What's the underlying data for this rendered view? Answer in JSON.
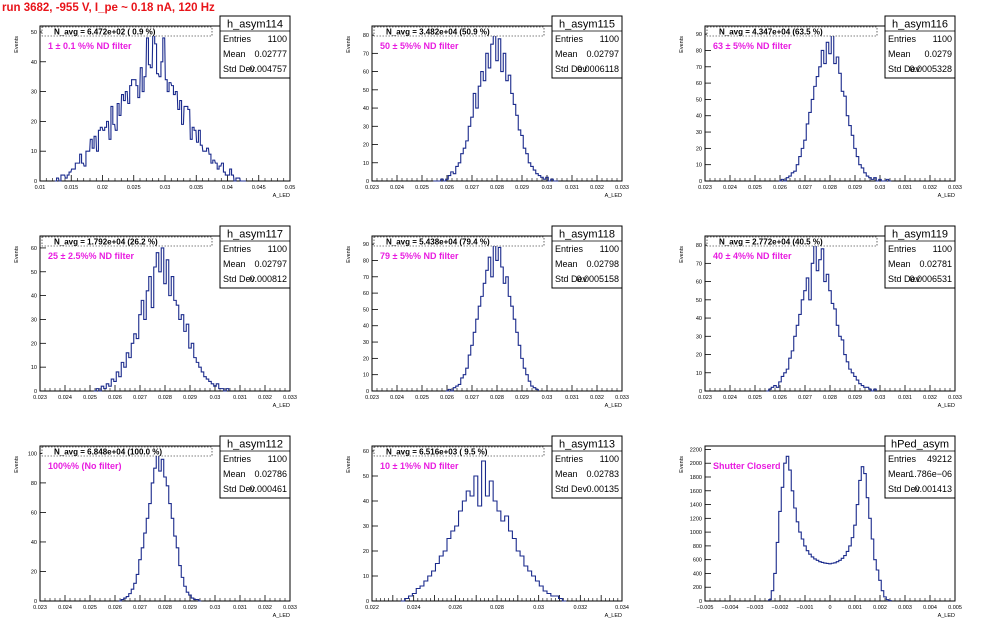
{
  "run_title": "run 3682,  -955 V, I_pe ~ 0.18 nA, 120 Hz",
  "axis_ylabel": "Events",
  "axis_xlabel": "A_LED",
  "stat_labels": {
    "entries": "Entries",
    "mean": "Mean",
    "stddev": "Std Dev"
  },
  "colors": {
    "histogram": "#1a2a8c",
    "annotation": "#e81ce0",
    "title": "#e8141a",
    "frame": "#000000"
  },
  "chart_data": [
    {
      "type": "histogram",
      "name": "h_asym114",
      "navg": "N_avg = 6.472e+02 ( 0.9 %)",
      "note": "1 ± 0.1 %% ND filter",
      "entries": "1100",
      "mean": "0.02777",
      "stddev": "0.004757",
      "xlim": [
        0.01,
        0.05
      ],
      "ylim": [
        0,
        52
      ],
      "xticks": [
        "0.01",
        "0.015",
        "0.02",
        "0.025",
        "0.03",
        "0.035",
        "0.04",
        "0.045",
        "0.05"
      ],
      "yticks": [
        0,
        10,
        20,
        30,
        40,
        50
      ],
      "bins": [
        0.0125,
        0.0128,
        0.0132,
        0.0135,
        0.0138,
        0.0142,
        0.0145,
        0.0148,
        0.0152,
        0.0155,
        0.0158,
        0.0162,
        0.0165,
        0.0168,
        0.0172,
        0.0175,
        0.0178,
        0.0182,
        0.0185,
        0.0188,
        0.0192,
        0.0195,
        0.0198,
        0.0202,
        0.0205,
        0.0208,
        0.0212,
        0.0215,
        0.0218,
        0.0222,
        0.0225,
        0.0228,
        0.0232,
        0.0235,
        0.0238,
        0.0242,
        0.0245,
        0.0248,
        0.0252,
        0.0255,
        0.0258,
        0.0262,
        0.0265,
        0.0268,
        0.0272,
        0.0275,
        0.0278,
        0.0282,
        0.0285,
        0.0288,
        0.0292,
        0.0295,
        0.0298,
        0.0302,
        0.0305,
        0.0308,
        0.0312,
        0.0315,
        0.0318,
        0.0322,
        0.0325,
        0.0328,
        0.0332,
        0.0335,
        0.0338,
        0.0342,
        0.0345,
        0.0348,
        0.0352,
        0.0355,
        0.0358,
        0.0362,
        0.0365,
        0.0368,
        0.0372,
        0.0375,
        0.0378,
        0.0382,
        0.0385,
        0.0388,
        0.0392,
        0.0395,
        0.0398,
        0.0402,
        0.0405,
        0.0408,
        0.0412,
        0.0415,
        0.0418,
        0.0422,
        0.0425,
        0.0428
      ],
      "values": [
        0,
        1,
        0,
        2,
        2,
        1,
        2,
        3,
        4,
        4,
        6,
        6,
        9,
        6,
        5,
        10,
        10,
        14,
        11,
        15,
        10,
        17,
        18,
        17,
        18,
        20,
        14,
        25,
        19,
        17,
        26,
        22,
        29,
        27,
        30,
        26,
        32,
        34,
        34,
        32,
        28,
        38,
        30,
        35,
        48,
        39,
        38,
        50,
        46,
        36,
        35,
        40,
        48,
        34,
        30,
        33,
        32,
        29,
        30,
        24,
        27,
        19,
        25,
        25,
        24,
        14,
        18,
        17,
        13,
        17,
        12,
        10,
        10,
        11,
        9,
        6,
        7,
        6,
        4,
        5,
        6,
        3,
        2,
        2,
        4,
        2,
        0,
        1,
        1,
        0,
        0,
        0
      ]
    },
    {
      "type": "histogram",
      "name": "h_asym115",
      "navg": "N_avg = 3.482e+04 (50.9 %)",
      "note": "50 ± 5%% ND filter",
      "entries": "1100",
      "mean": "0.02797",
      "stddev": "0.0006118",
      "xlim": [
        0.023,
        0.033
      ],
      "ylim": [
        0,
        85
      ],
      "xticks": [
        "0.023",
        "0.024",
        "0.025",
        "0.026",
        "0.027",
        "0.028",
        "0.029",
        "0.03",
        "0.031",
        "0.032",
        "0.033"
      ],
      "yticks": [
        0,
        10,
        20,
        30,
        40,
        50,
        60,
        70,
        80
      ],
      "bins": [
        0.0255,
        0.0256,
        0.0257,
        0.0258,
        0.0259,
        0.026,
        0.0261,
        0.0262,
        0.0263,
        0.0264,
        0.0265,
        0.0266,
        0.0267,
        0.0268,
        0.0269,
        0.027,
        0.0271,
        0.0272,
        0.0273,
        0.0274,
        0.0275,
        0.0276,
        0.0277,
        0.0278,
        0.0279,
        0.028,
        0.0281,
        0.0282,
        0.0283,
        0.0284,
        0.0285,
        0.0286,
        0.0287,
        0.0288,
        0.0289,
        0.029,
        0.0291,
        0.0292,
        0.0293,
        0.0294,
        0.0295,
        0.0296,
        0.0297,
        0.0298,
        0.0299,
        0.03,
        0.0301,
        0.0302,
        0.0303,
        0.0304
      ],
      "values": [
        0,
        0,
        0,
        1,
        0,
        1,
        3,
        5,
        4,
        8,
        10,
        15,
        18,
        22,
        30,
        35,
        48,
        40,
        52,
        60,
        55,
        70,
        62,
        75,
        82,
        66,
        78,
        60,
        70,
        55,
        58,
        48,
        42,
        36,
        28,
        25,
        18,
        15,
        10,
        8,
        6,
        4,
        3,
        2,
        1,
        2,
        0,
        1,
        0,
        0
      ]
    },
    {
      "type": "histogram",
      "name": "h_asym116",
      "navg": "N_avg = 4.347e+04 (63.5 %)",
      "note": "63 ± 5%% ND filter",
      "entries": "1100",
      "mean": "0.0279",
      "stddev": "0.0005328",
      "xlim": [
        0.023,
        0.033
      ],
      "ylim": [
        0,
        95
      ],
      "xticks": [
        "0.023",
        "0.024",
        "0.025",
        "0.026",
        "0.027",
        "0.028",
        "0.029",
        "0.03",
        "0.031",
        "0.032",
        "0.033"
      ],
      "yticks": [
        0,
        10,
        20,
        30,
        40,
        50,
        60,
        70,
        80,
        90
      ],
      "bins": [
        0.026,
        0.0261,
        0.0262,
        0.0263,
        0.0264,
        0.0265,
        0.0266,
        0.0267,
        0.0268,
        0.0269,
        0.027,
        0.0271,
        0.0272,
        0.0273,
        0.0274,
        0.0275,
        0.0276,
        0.0277,
        0.0278,
        0.0279,
        0.028,
        0.0281,
        0.0282,
        0.0283,
        0.0284,
        0.0285,
        0.0286,
        0.0287,
        0.0288,
        0.0289,
        0.029,
        0.0291,
        0.0292,
        0.0293,
        0.0294,
        0.0295,
        0.0296,
        0.0297,
        0.0298,
        0.0299,
        0.03,
        0.0301,
        0.0302,
        0.0303,
        0.0304
      ],
      "values": [
        0,
        1,
        0,
        2,
        3,
        5,
        6,
        10,
        15,
        20,
        25,
        35,
        42,
        50,
        58,
        64,
        70,
        80,
        72,
        85,
        78,
        90,
        72,
        76,
        66,
        55,
        52,
        40,
        34,
        28,
        20,
        15,
        10,
        8,
        5,
        3,
        2,
        1,
        2,
        0,
        1,
        0,
        0,
        1,
        0
      ]
    },
    {
      "type": "histogram",
      "name": "h_asym117",
      "navg": "N_avg = 1.792e+04 (26.2 %)",
      "note": "25 ± 2.5%% ND filter",
      "entries": "1100",
      "mean": "0.02797",
      "stddev": "0.000812",
      "xlim": [
        0.023,
        0.033
      ],
      "ylim": [
        0,
        65
      ],
      "xticks": [
        "0.023",
        "0.024",
        "0.025",
        "0.026",
        "0.027",
        "0.028",
        "0.029",
        "0.03",
        "0.031",
        "0.032",
        "0.033"
      ],
      "yticks": [
        0,
        10,
        20,
        30,
        40,
        50,
        60
      ],
      "bins": [
        0.0252,
        0.0253,
        0.0254,
        0.0255,
        0.0256,
        0.0257,
        0.0258,
        0.0259,
        0.026,
        0.0261,
        0.0262,
        0.0263,
        0.0264,
        0.0265,
        0.0266,
        0.0267,
        0.0268,
        0.0269,
        0.027,
        0.0271,
        0.0272,
        0.0273,
        0.0274,
        0.0275,
        0.0276,
        0.0277,
        0.0278,
        0.0279,
        0.028,
        0.0281,
        0.0282,
        0.0283,
        0.0284,
        0.0285,
        0.0286,
        0.0287,
        0.0288,
        0.0289,
        0.029,
        0.0291,
        0.0292,
        0.0293,
        0.0294,
        0.0295,
        0.0296,
        0.0297,
        0.0298,
        0.0299,
        0.03,
        0.0301,
        0.0302,
        0.0303,
        0.0304,
        0.0305
      ],
      "values": [
        0,
        1,
        0,
        2,
        1,
        3,
        2,
        5,
        4,
        8,
        6,
        12,
        10,
        16,
        14,
        20,
        24,
        22,
        32,
        38,
        30,
        42,
        48,
        35,
        52,
        58,
        50,
        60,
        45,
        55,
        40,
        48,
        38,
        36,
        30,
        32,
        25,
        28,
        18,
        20,
        14,
        12,
        10,
        8,
        6,
        5,
        4,
        3,
        2,
        3,
        1,
        1,
        0,
        1
      ]
    },
    {
      "type": "histogram",
      "name": "h_asym118",
      "navg": "N_avg = 5.438e+04 (79.4 %)",
      "note": "79 ± 5%% ND filter",
      "entries": "1100",
      "mean": "0.02798",
      "stddev": "0.0005158",
      "xlim": [
        0.023,
        0.033
      ],
      "ylim": [
        0,
        95
      ],
      "xticks": [
        "0.023",
        "0.024",
        "0.025",
        "0.026",
        "0.027",
        "0.028",
        "0.029",
        "0.03",
        "0.031",
        "0.032",
        "0.033"
      ],
      "yticks": [
        0,
        10,
        20,
        30,
        40,
        50,
        60,
        70,
        80,
        90
      ],
      "bins": [
        0.026,
        0.0261,
        0.0262,
        0.0263,
        0.0264,
        0.0265,
        0.0266,
        0.0267,
        0.0268,
        0.0269,
        0.027,
        0.0271,
        0.0272,
        0.0273,
        0.0274,
        0.0275,
        0.0276,
        0.0277,
        0.0278,
        0.0279,
        0.028,
        0.0281,
        0.0282,
        0.0283,
        0.0284,
        0.0285,
        0.0286,
        0.0287,
        0.0288,
        0.0289,
        0.029,
        0.0291,
        0.0292,
        0.0293,
        0.0294,
        0.0295,
        0.0296
      ],
      "values": [
        0,
        1,
        0,
        2,
        3,
        4,
        8,
        10,
        14,
        22,
        28,
        36,
        44,
        52,
        58,
        66,
        74,
        82,
        70,
        92,
        80,
        88,
        76,
        66,
        70,
        58,
        52,
        44,
        36,
        28,
        20,
        14,
        10,
        6,
        3,
        2,
        1
      ]
    },
    {
      "type": "histogram",
      "name": "h_asym119",
      "navg": "N_avg = 2.772e+04 (40.5 %)",
      "note": "40 ± 4%% ND filter",
      "entries": "1100",
      "mean": "0.02781",
      "stddev": "0.0006531",
      "xlim": [
        0.023,
        0.033
      ],
      "ylim": [
        0,
        85
      ],
      "xticks": [
        "0.023",
        "0.024",
        "0.025",
        "0.026",
        "0.027",
        "0.028",
        "0.029",
        "0.03",
        "0.031",
        "0.032",
        "0.033"
      ],
      "yticks": [
        0,
        10,
        20,
        30,
        40,
        50,
        60,
        70,
        80
      ],
      "bins": [
        0.0255,
        0.0256,
        0.0257,
        0.0258,
        0.0259,
        0.026,
        0.0261,
        0.0262,
        0.0263,
        0.0264,
        0.0265,
        0.0266,
        0.0267,
        0.0268,
        0.0269,
        0.027,
        0.0271,
        0.0272,
        0.0273,
        0.0274,
        0.0275,
        0.0276,
        0.0277,
        0.0278,
        0.0279,
        0.028,
        0.0281,
        0.0282,
        0.0283,
        0.0284,
        0.0285,
        0.0286,
        0.0287,
        0.0288,
        0.0289,
        0.029,
        0.0291,
        0.0292,
        0.0293,
        0.0294,
        0.0295,
        0.0296,
        0.0297,
        0.0298
      ],
      "values": [
        0,
        1,
        2,
        3,
        2,
        5,
        8,
        10,
        12,
        18,
        22,
        30,
        36,
        42,
        50,
        55,
        62,
        50,
        70,
        80,
        66,
        72,
        78,
        60,
        64,
        55,
        48,
        45,
        36,
        30,
        28,
        20,
        16,
        12,
        10,
        8,
        6,
        4,
        3,
        2,
        2,
        1,
        0,
        1
      ]
    },
    {
      "type": "histogram",
      "name": "h_asym112",
      "navg": "N_avg = 6.848e+04 (100.0 %)",
      "note": "100%% (No filter)",
      "entries": "1100",
      "mean": "0.02786",
      "stddev": "0.000461",
      "xlim": [
        0.023,
        0.033
      ],
      "ylim": [
        0,
        105
      ],
      "xticks": [
        "0.023",
        "0.024",
        "0.025",
        "0.026",
        "0.027",
        "0.028",
        "0.029",
        "0.03",
        "0.031",
        "0.032",
        "0.033"
      ],
      "yticks": [
        0,
        20,
        40,
        60,
        80,
        100
      ],
      "bins": [
        0.0262,
        0.0263,
        0.0264,
        0.0265,
        0.0266,
        0.0267,
        0.0268,
        0.0269,
        0.027,
        0.0271,
        0.0272,
        0.0273,
        0.0274,
        0.0275,
        0.0276,
        0.0277,
        0.0278,
        0.0279,
        0.028,
        0.0281,
        0.0282,
        0.0283,
        0.0284,
        0.0285,
        0.0286,
        0.0287,
        0.0288,
        0.0289,
        0.029,
        0.0291,
        0.0292,
        0.0293,
        0.0294
      ],
      "values": [
        0,
        1,
        2,
        3,
        5,
        8,
        12,
        18,
        28,
        36,
        46,
        56,
        66,
        80,
        90,
        100,
        88,
        96,
        84,
        78,
        66,
        56,
        44,
        36,
        24,
        16,
        10,
        6,
        4,
        2,
        1,
        1,
        0
      ]
    },
    {
      "type": "histogram",
      "name": "h_asym113",
      "navg": "N_avg = 6.516e+03 ( 9.5 %)",
      "note": "10 ± 1%% ND filter",
      "entries": "1100",
      "mean": "0.02783",
      "stddev": "0.00135",
      "xlim": [
        0.022,
        0.035
      ],
      "ylim": [
        0,
        62
      ],
      "xticks": [
        "0.022",
        "",
        "0.024",
        "",
        "0.026",
        "",
        "0.028",
        "",
        "0.03",
        "",
        "0.032",
        "",
        "0.034"
      ],
      "yticks": [
        0,
        10,
        20,
        30,
        40,
        50,
        60
      ],
      "bins": [
        0.0236,
        0.0238,
        0.024,
        0.0242,
        0.0244,
        0.0246,
        0.0248,
        0.025,
        0.0252,
        0.0254,
        0.0256,
        0.0258,
        0.026,
        0.0262,
        0.0264,
        0.0266,
        0.0268,
        0.027,
        0.0272,
        0.0274,
        0.0276,
        0.0278,
        0.028,
        0.0282,
        0.0284,
        0.0286,
        0.0288,
        0.029,
        0.0292,
        0.0294,
        0.0296,
        0.0298,
        0.03,
        0.0302,
        0.0304,
        0.0306,
        0.0308,
        0.031,
        0.0312,
        0.0314,
        0.0316,
        0.0318,
        0.032
      ],
      "values": [
        0,
        1,
        2,
        3,
        5,
        6,
        8,
        10,
        12,
        15,
        18,
        20,
        25,
        28,
        30,
        36,
        40,
        44,
        42,
        50,
        38,
        56,
        42,
        48,
        40,
        36,
        32,
        34,
        28,
        25,
        20,
        18,
        14,
        12,
        10,
        8,
        6,
        4,
        3,
        2,
        2,
        1,
        0
      ]
    },
    {
      "type": "histogram",
      "name": "hPed_asym",
      "navg": "",
      "note": "Shutter Closerd",
      "entries": "49212",
      "mean": "1.786e−06",
      "stddev": "0.001413",
      "xlim": [
        -0.005,
        0.005
      ],
      "ylim": [
        0,
        2250
      ],
      "xticks": [
        "−0.005",
        "−0.004",
        "−0.003",
        "−0.002",
        "−0.001",
        "0",
        "0.001",
        "0.002",
        "0.003",
        "0.004",
        "0.005"
      ],
      "yticks": [
        0,
        200,
        400,
        600,
        800,
        1000,
        1200,
        1400,
        1600,
        1800,
        2000,
        2200
      ],
      "bins": [
        -0.0024,
        -0.0023,
        -0.0022,
        -0.0021,
        -0.002,
        -0.0019,
        -0.0018,
        -0.0017,
        -0.0016,
        -0.0015,
        -0.0014,
        -0.0013,
        -0.0012,
        -0.0011,
        -0.001,
        -0.0009,
        -0.0008,
        -0.0007,
        -0.0006,
        -0.0005,
        -0.0004,
        -0.0003,
        -0.0002,
        -0.0001,
        0.0,
        0.0001,
        0.0002,
        0.0003,
        0.0004,
        0.0005,
        0.0006,
        0.0007,
        0.0008,
        0.0009,
        0.001,
        0.0011,
        0.0012,
        0.0013,
        0.0014,
        0.0015,
        0.0016,
        0.0017,
        0.0018,
        0.0019,
        0.002,
        0.0021,
        0.0022,
        0.0023,
        0.0024
      ],
      "values": [
        20,
        150,
        400,
        850,
        1300,
        1650,
        2000,
        2100,
        1900,
        1600,
        1350,
        1150,
        1000,
        900,
        800,
        730,
        680,
        640,
        610,
        590,
        570,
        560,
        550,
        545,
        540,
        548,
        555,
        570,
        590,
        620,
        660,
        720,
        800,
        920,
        1100,
        1400,
        1750,
        1950,
        1850,
        1500,
        1200,
        900,
        600,
        450,
        300,
        150,
        60,
        20,
        5
      ]
    }
  ]
}
